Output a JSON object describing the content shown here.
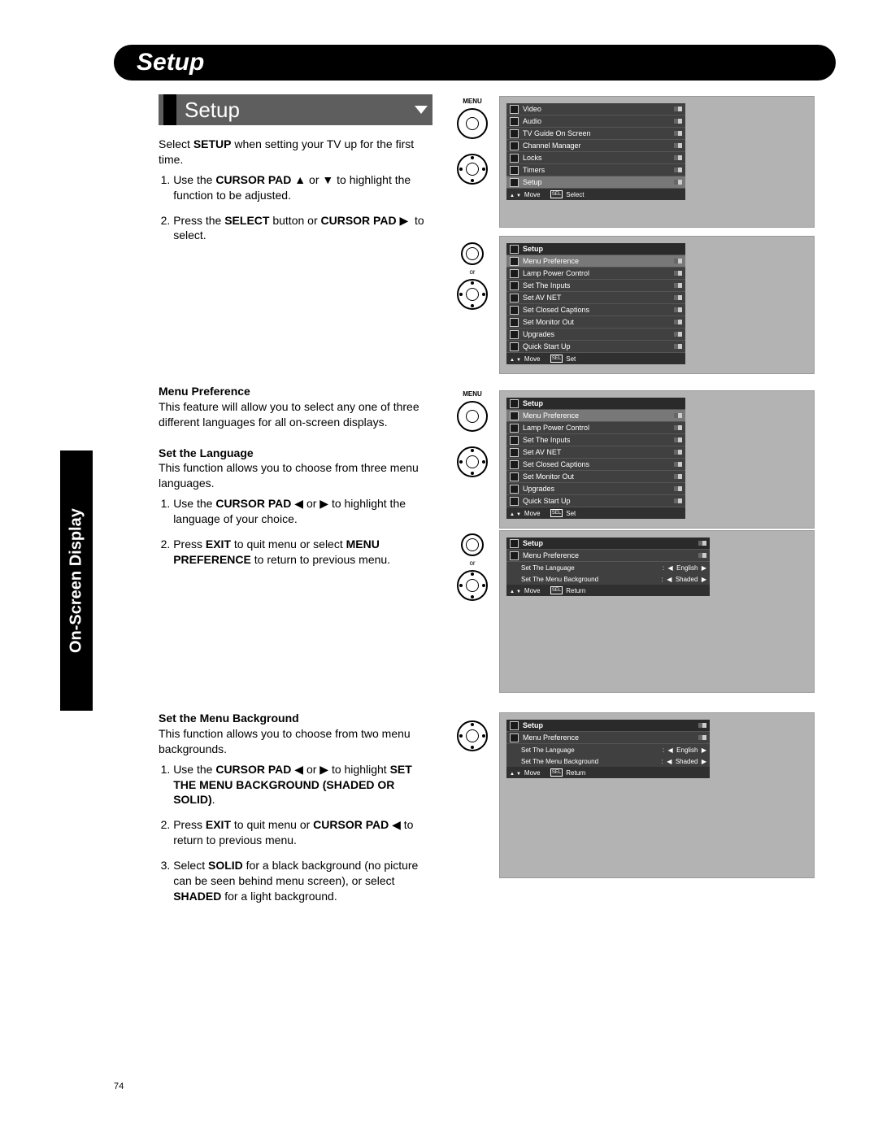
{
  "page_number": "74",
  "side_tab": "On-Screen Display",
  "title": "Setup",
  "section_title": "Setup",
  "intro": "Select SETUP when setting your TV up for the first time.",
  "intro_steps": [
    "Use the CURSOR PAD ▲ or ▼ to highlight the function to be adjusted.",
    "Press the SELECT button or CURSOR PAD ▶  to select."
  ],
  "sections": {
    "menu_pref": {
      "heading": "Menu Preference",
      "body": "This feature will allow you to select any one of three different languages for all on-screen displays."
    },
    "set_lang": {
      "heading": "Set the Language",
      "body": "This function allows you to choose from three menu languages.",
      "steps": [
        "Use the CURSOR PAD ◀ or ▶ to highlight the language of your choice.",
        "Press EXIT to quit menu or select MENU PREFERENCE to return to previous menu."
      ]
    },
    "set_bg": {
      "heading": "Set the Menu Background",
      "body": "This function allows you to choose from two menu backgrounds.",
      "steps": [
        "Use the CURSOR PAD ◀ or ▶ to highlight SET THE MENU BACKGROUND (SHADED OR SOLID).",
        "Press EXIT to quit menu or CURSOR PAD ◀ to return to previous menu.",
        "Select SOLID for a black background (no picture can be seen behind menu screen), or select SHADED for a light background."
      ]
    }
  },
  "remote_labels": {
    "menu": "MENU",
    "or": "or"
  },
  "osd": {
    "main": {
      "items": [
        "Video",
        "Audio",
        "TV Guide On Screen",
        "Channel Manager",
        "Locks",
        "Timers",
        "Setup"
      ],
      "highlight_index": 6,
      "footer_move": "Move",
      "footer_sel": "SEL",
      "footer_action": "Select"
    },
    "setup": {
      "header": "Setup",
      "items": [
        "Menu Preference",
        "Lamp Power Control",
        "Set The Inputs",
        "Set AV NET",
        "Set Closed Captions",
        "Set Monitor Out",
        "Upgrades",
        "Quick Start Up"
      ],
      "highlight_index": 0,
      "footer_move": "Move",
      "footer_sel": "SEL",
      "footer_action": "Set"
    },
    "pref": {
      "header": "Setup",
      "sub": "Menu Preference",
      "rows": [
        {
          "label": "Set The Language",
          "value": "English",
          "hl": true
        },
        {
          "label": "Set The Menu Background",
          "value": "Shaded",
          "hl": false
        }
      ],
      "footer_move": "Move",
      "footer_sel": "SEL",
      "footer_action": "Return"
    },
    "pref2": {
      "rows": [
        {
          "label": "Set The Language",
          "value": "English",
          "hl": false
        },
        {
          "label": "Set The Menu Background",
          "value": "Shaded",
          "hl": true
        }
      ]
    }
  }
}
